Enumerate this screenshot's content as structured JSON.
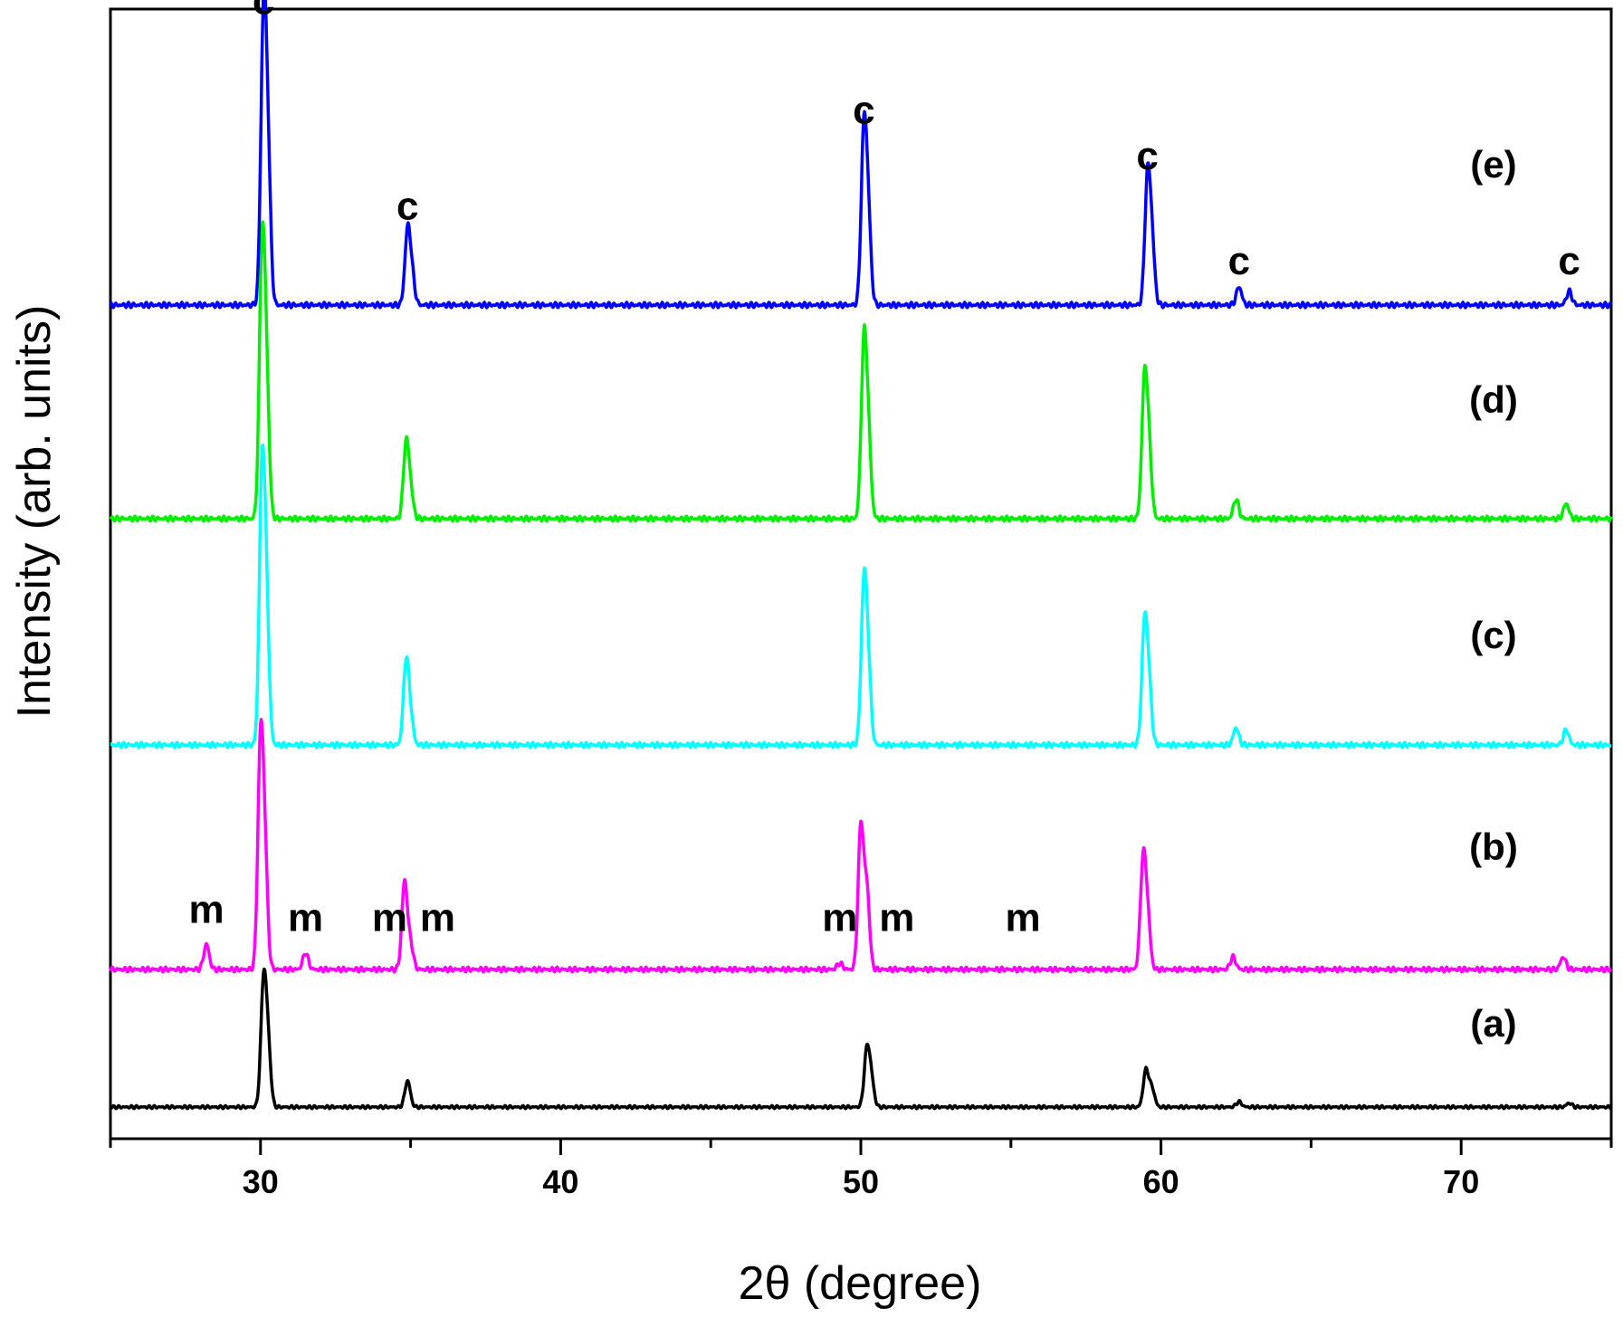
{
  "chart_data": {
    "type": "line",
    "title": "",
    "xlabel": "2θ (degree)",
    "ylabel": "Intensity (arb. units)",
    "xlim": [
      25,
      75
    ],
    "xticks": [
      30,
      40,
      50,
      60,
      70
    ],
    "grid": false,
    "legend": "none",
    "series": [
      {
        "name": "(a)",
        "color": "#000000",
        "peaks": [
          [
            30.1,
            0.92
          ],
          [
            30.25,
            0.45
          ],
          [
            34.9,
            0.2
          ],
          [
            50.2,
            0.42
          ],
          [
            50.35,
            0.2
          ],
          [
            59.5,
            0.28
          ],
          [
            59.7,
            0.14
          ],
          [
            62.6,
            0.04
          ],
          [
            73.6,
            0.03
          ]
        ],
        "annotations": []
      },
      {
        "name": "(b)",
        "color": "#ff00ff",
        "peaks": [
          [
            28.2,
            0.12
          ],
          [
            30.0,
            1.05
          ],
          [
            30.15,
            0.5
          ],
          [
            31.5,
            0.08
          ],
          [
            34.8,
            0.42
          ],
          [
            35.0,
            0.12
          ],
          [
            49.3,
            0.03
          ],
          [
            50.0,
            0.68
          ],
          [
            50.2,
            0.38
          ],
          [
            59.4,
            0.5
          ],
          [
            59.55,
            0.25
          ],
          [
            62.4,
            0.06
          ],
          [
            73.4,
            0.06
          ]
        ],
        "annotations": [
          {
            "text": "m",
            "x": 28.2
          },
          {
            "text": "m",
            "x": 31.5
          },
          {
            "text": "m",
            "x": 34.3
          },
          {
            "text": "m",
            "x": 35.9
          },
          {
            "text": "m",
            "x": 49.3
          },
          {
            "text": "m",
            "x": 51.2
          },
          {
            "text": "m",
            "x": 55.4
          }
        ]
      },
      {
        "name": "(c)",
        "color": "#00ffff",
        "peaks": [
          [
            30.05,
            1.22
          ],
          [
            30.2,
            0.6
          ],
          [
            34.85,
            0.38
          ],
          [
            35.0,
            0.12
          ],
          [
            50.1,
            0.72
          ],
          [
            50.25,
            0.34
          ],
          [
            59.45,
            0.54
          ],
          [
            59.6,
            0.26
          ],
          [
            62.5,
            0.08
          ],
          [
            73.5,
            0.07
          ]
        ],
        "annotations": []
      },
      {
        "name": "(d)",
        "color": "#00ee00",
        "peaks": [
          [
            30.05,
            1.2
          ],
          [
            30.2,
            0.6
          ],
          [
            34.85,
            0.34
          ],
          [
            35.0,
            0.12
          ],
          [
            50.1,
            0.78
          ],
          [
            50.25,
            0.36
          ],
          [
            59.45,
            0.62
          ],
          [
            59.6,
            0.3
          ],
          [
            62.5,
            0.09
          ],
          [
            73.5,
            0.07
          ]
        ],
        "annotations": []
      },
      {
        "name": "(e)",
        "color": "#0000ff",
        "peaks": [
          [
            30.1,
            1.22
          ],
          [
            30.25,
            0.6
          ],
          [
            34.9,
            0.32
          ],
          [
            35.05,
            0.12
          ],
          [
            50.1,
            0.74
          ],
          [
            50.25,
            0.36
          ],
          [
            59.55,
            0.54
          ],
          [
            59.7,
            0.26
          ],
          [
            62.6,
            0.08
          ],
          [
            73.6,
            0.06
          ]
        ],
        "annotations": [
          {
            "text": "c",
            "x": 30.1
          },
          {
            "text": "c",
            "x": 34.9
          },
          {
            "text": "c",
            "x": 50.1
          },
          {
            "text": "c",
            "x": 59.55
          },
          {
            "text": "c",
            "x": 62.6
          },
          {
            "text": "c",
            "x": 73.6
          }
        ]
      }
    ]
  }
}
